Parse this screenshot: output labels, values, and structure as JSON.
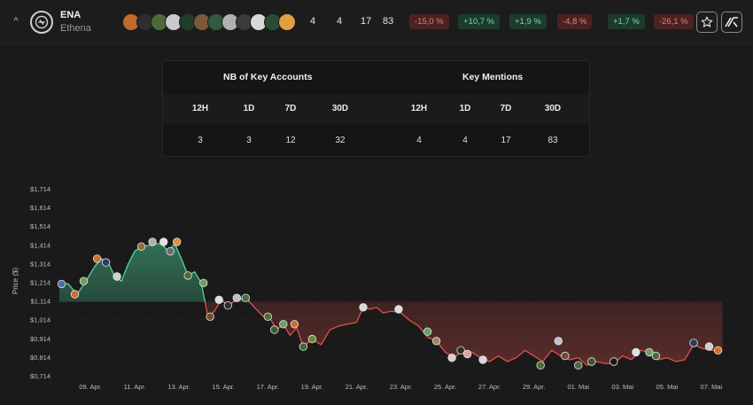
{
  "header": {
    "symbol": "ENA",
    "name": "Ethena",
    "collapse_icon": "chevron-up-icon",
    "logo_icon": "ethena-logo-icon",
    "avatar_colors": [
      "#c46a2e",
      "#2e2e2e",
      "#4d6b3a",
      "#c9c9c9",
      "#1f3d2a",
      "#7a5a3a",
      "#2f5b3f",
      "#b0b0b0",
      "#3b3b3b",
      "#d8d8d8",
      "#2c4a34",
      "#e0a040"
    ],
    "counts": [
      "4",
      "4",
      "17",
      "83"
    ],
    "changes": [
      {
        "text": "-15,0 %",
        "trend": "negative"
      },
      {
        "text": "+10,7 %",
        "trend": "positive"
      },
      {
        "text": "+1,9 %",
        "trend": "positive"
      },
      {
        "text": "-4,8 %",
        "trend": "negative"
      },
      {
        "text": "+1,7 %",
        "trend": "positive"
      },
      {
        "text": "-26,1 %",
        "trend": "negative"
      }
    ],
    "star_icon": "star-icon",
    "brand_icon": "brand-logo-icon"
  },
  "stats": {
    "accounts_title": "NB of Key Accounts",
    "mentions_title": "Key Mentions",
    "periods": [
      "12H",
      "1D",
      "7D",
      "30D"
    ],
    "accounts": [
      "3",
      "3",
      "12",
      "32"
    ],
    "mentions": [
      "4",
      "4",
      "17",
      "83"
    ]
  },
  "chart_data": {
    "type": "line",
    "ylabel": "Price ($)",
    "ylim": [
      0.714,
      1.714
    ],
    "y_ticks": [
      "$1,714",
      "$1,614",
      "$1,514",
      "$1,414",
      "$1,314",
      "$1,214",
      "$1,114",
      "$1,014",
      "$0,914",
      "$0,814",
      "$0,714"
    ],
    "x_ticks": [
      "09. Apr.",
      "11. Apr.",
      "13. Apr.",
      "15. Apr.",
      "17. Apr.",
      "19. Apr.",
      "21. Apr.",
      "23. Apr.",
      "25. Apr.",
      "27. Apr.",
      "29. Apr.",
      "01. Mai",
      "03. Mai",
      "05. Mai",
      "07. Mai"
    ],
    "x_range_days": [
      7.4,
      37.6
    ],
    "reference_price": 1.11,
    "colors": {
      "above": "#4fd8a0",
      "below": "#e0524a"
    },
    "series": [
      {
        "values": [
          [
            7.6,
            1.21
          ],
          [
            8.0,
            1.205
          ],
          [
            8.4,
            1.15
          ],
          [
            8.8,
            1.22
          ],
          [
            9.2,
            1.3
          ],
          [
            9.5,
            1.34
          ],
          [
            9.8,
            1.32
          ],
          [
            10.1,
            1.245
          ],
          [
            10.4,
            1.22
          ],
          [
            10.7,
            1.31
          ],
          [
            11.0,
            1.38
          ],
          [
            11.3,
            1.405
          ],
          [
            11.6,
            1.41
          ],
          [
            11.9,
            1.42
          ],
          [
            12.2,
            1.42
          ],
          [
            12.5,
            1.38
          ],
          [
            12.8,
            1.42
          ],
          [
            13.1,
            1.34
          ],
          [
            13.4,
            1.25
          ],
          [
            13.7,
            1.27
          ],
          [
            14.0,
            1.21
          ],
          [
            14.3,
            1.03
          ],
          [
            14.6,
            1.06
          ],
          [
            14.9,
            1.12
          ],
          [
            15.2,
            1.09
          ],
          [
            15.6,
            1.12
          ],
          [
            16.0,
            1.13
          ],
          [
            16.4,
            1.08
          ],
          [
            16.8,
            1.03
          ],
          [
            17.1,
            1.02
          ],
          [
            17.4,
            0.96
          ],
          [
            17.7,
            0.99
          ],
          [
            18.0,
            0.93
          ],
          [
            18.3,
            0.97
          ],
          [
            18.6,
            0.87
          ],
          [
            19.0,
            0.91
          ],
          [
            19.4,
            0.88
          ],
          [
            19.8,
            0.96
          ],
          [
            20.2,
            0.98
          ],
          [
            20.6,
            0.99
          ],
          [
            21.0,
            1.0
          ],
          [
            21.3,
            1.08
          ],
          [
            21.6,
            1.07
          ],
          [
            21.9,
            1.08
          ],
          [
            22.2,
            1.05
          ],
          [
            22.6,
            1.06
          ],
          [
            23.0,
            1.05
          ],
          [
            23.4,
            1.01
          ],
          [
            23.8,
            0.98
          ],
          [
            24.2,
            0.92
          ],
          [
            24.6,
            0.9
          ],
          [
            25.0,
            0.84
          ],
          [
            25.4,
            0.81
          ],
          [
            25.8,
            0.85
          ],
          [
            26.2,
            0.84
          ],
          [
            26.6,
            0.81
          ],
          [
            27.0,
            0.79
          ],
          [
            27.4,
            0.82
          ],
          [
            27.8,
            0.79
          ],
          [
            28.2,
            0.81
          ],
          [
            28.6,
            0.85
          ],
          [
            29.0,
            0.82
          ],
          [
            29.4,
            0.79
          ],
          [
            29.8,
            0.85
          ],
          [
            30.2,
            0.82
          ],
          [
            30.6,
            0.8
          ],
          [
            31.0,
            0.81
          ],
          [
            31.4,
            0.77
          ],
          [
            31.8,
            0.79
          ],
          [
            32.2,
            0.78
          ],
          [
            32.6,
            0.78
          ],
          [
            33.0,
            0.82
          ],
          [
            33.4,
            0.8
          ],
          [
            33.8,
            0.85
          ],
          [
            34.2,
            0.84
          ],
          [
            34.6,
            0.8
          ],
          [
            35.0,
            0.81
          ],
          [
            35.4,
            0.79
          ],
          [
            35.8,
            0.8
          ],
          [
            36.2,
            0.88
          ],
          [
            36.6,
            0.86
          ],
          [
            37.0,
            0.85
          ],
          [
            37.5,
            0.85
          ]
        ]
      }
    ],
    "markers": [
      [
        7.7,
        1.205,
        "#4a6fa0"
      ],
      [
        8.3,
        1.15,
        "#d06a2e"
      ],
      [
        8.7,
        1.22,
        "#6aa060"
      ],
      [
        9.3,
        1.34,
        "#d07030"
      ],
      [
        9.7,
        1.32,
        "#2e3a6a"
      ],
      [
        10.2,
        1.245,
        "#cfcfcf"
      ],
      [
        11.3,
        1.405,
        "#9a6a2e"
      ],
      [
        11.8,
        1.43,
        "#b0b0b0"
      ],
      [
        12.3,
        1.43,
        "#e0e0e0"
      ],
      [
        12.6,
        1.38,
        "#6a6a6a"
      ],
      [
        12.9,
        1.43,
        "#e09030"
      ],
      [
        13.4,
        1.25,
        "#4d6b3a"
      ],
      [
        14.1,
        1.21,
        "#6aa060"
      ],
      [
        14.4,
        1.03,
        "#6a5030"
      ],
      [
        14.8,
        1.12,
        "#dddddd"
      ],
      [
        15.2,
        1.09,
        "#2e2e2e"
      ],
      [
        15.6,
        1.13,
        "#c0c0c0"
      ],
      [
        16.0,
        1.13,
        "#4d6b3a"
      ],
      [
        17.0,
        1.03,
        "#4d6b3a"
      ],
      [
        17.3,
        0.96,
        "#3a5a2e"
      ],
      [
        17.7,
        0.99,
        "#6aa060"
      ],
      [
        18.2,
        0.99,
        "#d07030"
      ],
      [
        18.6,
        0.87,
        "#3a6a2e"
      ],
      [
        19.0,
        0.91,
        "#6a8a3a"
      ],
      [
        21.3,
        1.08,
        "#d8d8d8"
      ],
      [
        22.9,
        1.07,
        "#dddddd"
      ],
      [
        24.2,
        0.95,
        "#6aa060"
      ],
      [
        24.6,
        0.9,
        "#9a8a5a"
      ],
      [
        25.3,
        0.81,
        "#cfcfcf"
      ],
      [
        25.7,
        0.85,
        "#2e2e2e"
      ],
      [
        26.0,
        0.83,
        "#d8a0a0"
      ],
      [
        26.7,
        0.8,
        "#d8d8d8"
      ],
      [
        29.3,
        0.77,
        "#4d6b3a"
      ],
      [
        30.1,
        0.9,
        "#c0c0d0"
      ],
      [
        30.4,
        0.82,
        "#6a5030"
      ],
      [
        31.0,
        0.77,
        "#4d6b3a"
      ],
      [
        31.6,
        0.79,
        "#3a5a2e"
      ],
      [
        32.6,
        0.79,
        "#1a1a1a"
      ],
      [
        33.6,
        0.84,
        "#e0e0e0"
      ],
      [
        34.2,
        0.84,
        "#6aa060"
      ],
      [
        34.5,
        0.82,
        "#4d6b3a"
      ],
      [
        36.2,
        0.89,
        "#2e3a6a"
      ],
      [
        36.9,
        0.87,
        "#d0d0d0"
      ],
      [
        37.3,
        0.85,
        "#d07030"
      ]
    ]
  }
}
